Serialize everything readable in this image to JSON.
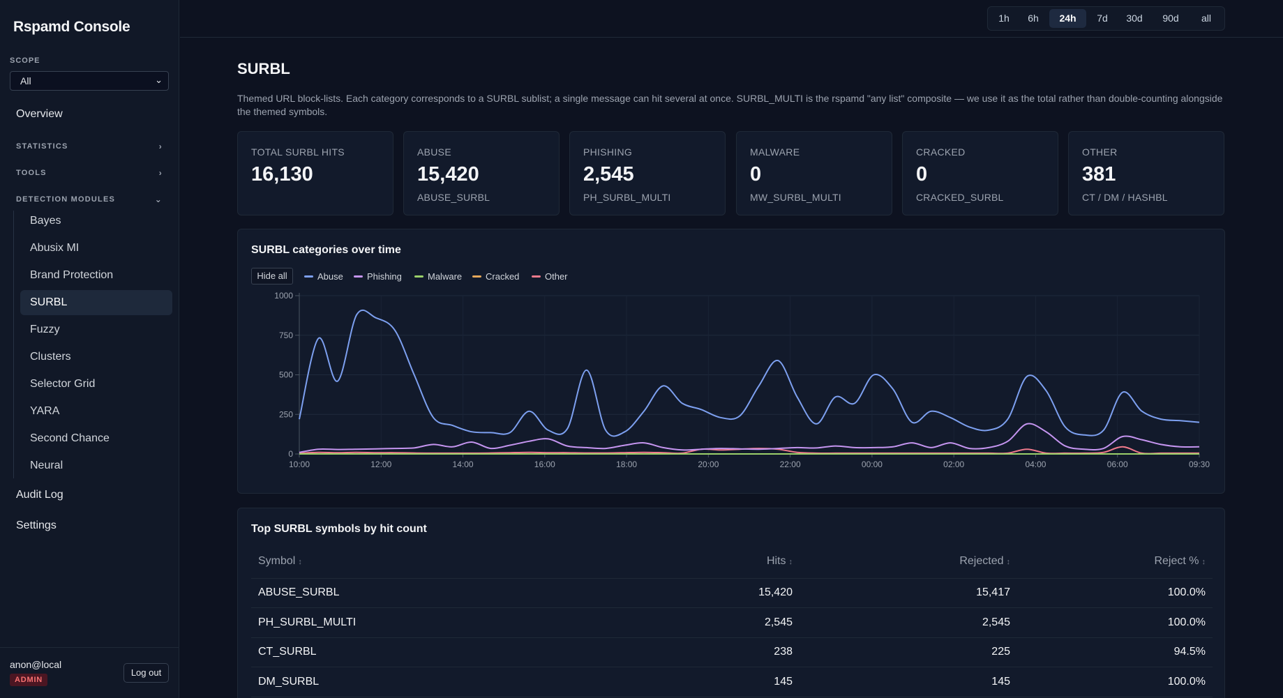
{
  "app": {
    "title": "Rspamd Console"
  },
  "sidebar": {
    "scope_label": "SCOPE",
    "scope_value": "All",
    "overview": "Overview",
    "sections": [
      {
        "label": "STATISTICS",
        "expanded": false
      },
      {
        "label": "TOOLS",
        "expanded": false
      },
      {
        "label": "DETECTION MODULES",
        "expanded": true
      }
    ],
    "modules": [
      "Bayes",
      "Abusix MI",
      "Brand Protection",
      "SURBL",
      "Fuzzy",
      "Clusters",
      "Selector Grid",
      "YARA",
      "Second Chance",
      "Neural"
    ],
    "active_module": "SURBL",
    "audit_log": "Audit Log",
    "settings": "Settings",
    "user": "anon@local",
    "role": "ADMIN",
    "logout_label": "Log out"
  },
  "time_ranges": [
    "1h",
    "6h",
    "24h",
    "7d",
    "30d",
    "90d",
    "all"
  ],
  "active_range": "24h",
  "page": {
    "title": "SURBL",
    "description": "Themed URL block-lists. Each category corresponds to a SURBL sublist; a single message can hit several at once. SURBL_MULTI is the rspamd \"any list\" composite — we use it as the total rather than double-counting alongside the themed symbols."
  },
  "stats": [
    {
      "label": "TOTAL SURBL HITS",
      "value": "16,130",
      "sub": ""
    },
    {
      "label": "ABUSE",
      "value": "15,420",
      "sub": "ABUSE_SURBL"
    },
    {
      "label": "PHISHING",
      "value": "2,545",
      "sub": "PH_SURBL_MULTI"
    },
    {
      "label": "MALWARE",
      "value": "0",
      "sub": "MW_SURBL_MULTI"
    },
    {
      "label": "CRACKED",
      "value": "0",
      "sub": "CRACKED_SURBL"
    },
    {
      "label": "OTHER",
      "value": "381",
      "sub": "CT / DM / HASHBL"
    }
  ],
  "chart": {
    "title": "SURBL categories over time",
    "hide_all_label": "Hide all",
    "colors": {
      "Abuse": "#7da0f0",
      "Phishing": "#c595f0",
      "Malware": "#9bd06a",
      "Cracked": "#e6a85a",
      "Other": "#f07a8c"
    }
  },
  "chart_data": {
    "type": "line",
    "title": "SURBL categories over time",
    "ylim": [
      0,
      1000
    ],
    "yticks": [
      "0",
      "250",
      "500",
      "750",
      "1000"
    ],
    "xticks": [
      "10:00",
      "12:00",
      "14:00",
      "16:00",
      "18:00",
      "20:00",
      "22:00",
      "00:00",
      "02:00",
      "04:00",
      "06:00",
      "09:30"
    ],
    "x_hours": [
      0,
      0.5,
      1,
      1.5,
      2,
      2.5,
      3,
      3.5,
      4,
      4.5,
      5,
      5.5,
      6,
      6.5,
      7,
      7.5,
      8,
      8.5,
      9,
      9.5,
      10,
      10.5,
      11,
      11.5,
      12,
      12.5,
      13,
      13.5,
      14,
      14.5,
      15,
      15.5,
      16,
      16.5,
      17,
      17.5,
      18,
      18.5,
      19,
      19.5,
      20,
      20.5,
      21,
      21.5,
      22,
      22.5,
      23,
      23.5
    ],
    "series": [
      {
        "name": "Abuse",
        "values": [
          220,
          730,
          460,
          880,
          860,
          780,
          500,
          230,
          180,
          140,
          135,
          135,
          270,
          150,
          160,
          530,
          150,
          140,
          270,
          430,
          320,
          280,
          230,
          240,
          430,
          590,
          360,
          190,
          360,
          320,
          500,
          410,
          200,
          270,
          230,
          170,
          150,
          220,
          490,
          400,
          170,
          120,
          150,
          390,
          270,
          220,
          210,
          200
        ]
      },
      {
        "name": "Phishing",
        "values": [
          10,
          30,
          28,
          30,
          32,
          35,
          38,
          60,
          45,
          75,
          35,
          55,
          80,
          95,
          50,
          40,
          35,
          55,
          70,
          40,
          25,
          30,
          35,
          32,
          30,
          35,
          40,
          38,
          50,
          40,
          40,
          45,
          70,
          40,
          70,
          35,
          40,
          80,
          190,
          140,
          50,
          30,
          35,
          110,
          90,
          60,
          45,
          45
        ]
      },
      {
        "name": "Malware",
        "values": [
          0,
          0,
          0,
          0,
          0,
          0,
          0,
          0,
          0,
          0,
          0,
          0,
          0,
          0,
          0,
          0,
          0,
          0,
          0,
          0,
          0,
          0,
          0,
          0,
          0,
          0,
          0,
          0,
          0,
          0,
          0,
          0,
          0,
          0,
          0,
          0,
          0,
          0,
          0,
          0,
          0,
          0,
          0,
          0,
          0,
          0,
          0,
          0
        ]
      },
      {
        "name": "Cracked",
        "values": [
          0,
          0,
          0,
          0,
          0,
          0,
          0,
          0,
          0,
          0,
          0,
          0,
          0,
          0,
          0,
          0,
          0,
          0,
          0,
          0,
          0,
          0,
          0,
          0,
          0,
          0,
          0,
          0,
          0,
          0,
          0,
          0,
          0,
          0,
          0,
          0,
          0,
          0,
          0,
          0,
          0,
          0,
          0,
          0,
          0,
          0,
          0,
          0
        ]
      },
      {
        "name": "Other",
        "values": [
          5,
          10,
          8,
          10,
          8,
          8,
          6,
          5,
          5,
          5,
          6,
          8,
          10,
          8,
          8,
          6,
          6,
          8,
          10,
          8,
          5,
          30,
          25,
          30,
          35,
          30,
          10,
          5,
          5,
          5,
          5,
          5,
          5,
          5,
          5,
          5,
          5,
          5,
          30,
          5,
          5,
          5,
          10,
          45,
          5,
          5,
          5,
          5
        ]
      }
    ]
  },
  "table": {
    "title": "Top SURBL symbols by hit count",
    "columns": [
      "Symbol",
      "Hits",
      "Rejected",
      "Reject %"
    ],
    "rows": [
      [
        "ABUSE_SURBL",
        "15,420",
        "15,417",
        "100.0%"
      ],
      [
        "PH_SURBL_MULTI",
        "2,545",
        "2,545",
        "100.0%"
      ],
      [
        "CT_SURBL",
        "238",
        "225",
        "94.5%"
      ],
      [
        "DM_SURBL",
        "145",
        "145",
        "100.0%"
      ]
    ]
  }
}
